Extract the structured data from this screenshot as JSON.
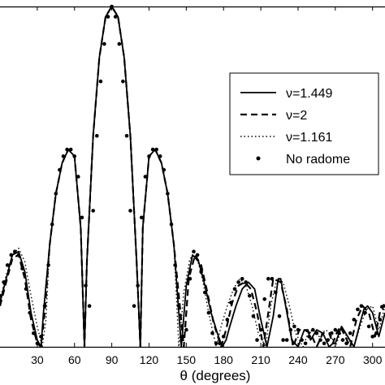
{
  "chart_data": {
    "type": "line",
    "title": "",
    "xlabel": "θ (degrees)",
    "ylabel": "",
    "xlim": [
      0,
      310
    ],
    "ylim": [
      0,
      1
    ],
    "x_ticks": [
      30,
      60,
      90,
      120,
      150,
      180,
      210,
      240,
      270,
      300
    ],
    "x_tick_labels": [
      "30",
      "60",
      "90",
      "120",
      "150",
      "180",
      "210",
      "240",
      "270",
      "300"
    ],
    "grid": false,
    "legend_position": "right",
    "series": [
      {
        "name": "ν=1.449",
        "style": "solid",
        "x": [
          0,
          5,
          10,
          15,
          20,
          25,
          30,
          33,
          35,
          40,
          45,
          50,
          55,
          60,
          65,
          68,
          70,
          75,
          80,
          85,
          90,
          95,
          100,
          105,
          110,
          113,
          115,
          120,
          125,
          130,
          135,
          140,
          146,
          150,
          155,
          160,
          165,
          170,
          175,
          179,
          182,
          185,
          190,
          195,
          200,
          205,
          210,
          215,
          220,
          224,
          226,
          230,
          235,
          240,
          245,
          248,
          250,
          255,
          260,
          265,
          268,
          270,
          272,
          275,
          280,
          285,
          290,
          293,
          296,
          300,
          305,
          310
        ],
        "y": [
          0.13,
          0.2,
          0.27,
          0.28,
          0.22,
          0.1,
          0.02,
          0,
          0.1,
          0.3,
          0.45,
          0.54,
          0.58,
          0.56,
          0.35,
          0,
          0.25,
          0.62,
          0.85,
          0.97,
          1.0,
          0.97,
          0.85,
          0.62,
          0.25,
          0,
          0.35,
          0.56,
          0.58,
          0.54,
          0.45,
          0.3,
          0,
          0.18,
          0.27,
          0.25,
          0.18,
          0.1,
          0.04,
          0,
          0.02,
          0.06,
          0.12,
          0.17,
          0.19,
          0.17,
          0.08,
          0,
          0.09,
          0.2,
          0.2,
          0.12,
          0.02,
          0,
          0.05,
          0.05,
          0.02,
          0.05,
          0.04,
          0,
          0.01,
          0.01,
          0.03,
          0.06,
          0.03,
          0,
          0.07,
          0.11,
          0.12,
          0.1,
          0.03,
          0.1
        ]
      },
      {
        "name": "ν=2",
        "style": "dashed",
        "x": [
          0,
          5,
          10,
          15,
          20,
          25,
          30,
          33,
          36,
          40,
          45,
          50,
          55,
          60,
          65,
          68,
          70,
          75,
          80,
          85,
          90,
          95,
          100,
          105,
          110,
          113,
          115,
          120,
          125,
          130,
          135,
          140,
          148,
          152,
          157,
          162,
          167,
          172,
          178,
          182,
          187,
          192,
          197,
          202,
          207,
          212,
          216,
          220,
          226,
          231,
          236,
          241,
          245,
          250,
          255,
          260,
          265,
          268,
          271,
          274,
          278,
          282,
          287,
          292,
          297,
          302,
          307,
          310
        ],
        "y": [
          0.12,
          0.19,
          0.26,
          0.27,
          0.2,
          0.08,
          0.01,
          0,
          0.1,
          0.3,
          0.45,
          0.54,
          0.58,
          0.56,
          0.35,
          0,
          0.25,
          0.62,
          0.85,
          0.97,
          1.0,
          0.97,
          0.85,
          0.62,
          0.25,
          0,
          0.35,
          0.56,
          0.58,
          0.54,
          0.45,
          0.3,
          0,
          0.2,
          0.27,
          0.24,
          0.16,
          0.07,
          0,
          0.05,
          0.13,
          0.18,
          0.19,
          0.17,
          0.1,
          0,
          0.1,
          0.2,
          0.19,
          0.11,
          0,
          0.05,
          0.05,
          0.04,
          0,
          0.04,
          0.04,
          0.01,
          0.04,
          0.06,
          0.03,
          0,
          0.08,
          0.12,
          0.1,
          0.03,
          0.12,
          0.1
        ]
      },
      {
        "name": "ν=1.161",
        "style": "dotted",
        "x": [
          0,
          5,
          10,
          15,
          20,
          25,
          30,
          34,
          37,
          40,
          45,
          50,
          55,
          60,
          65,
          68,
          70,
          75,
          80,
          85,
          90,
          95,
          100,
          105,
          110,
          113,
          115,
          120,
          125,
          130,
          135,
          140,
          144,
          148,
          153,
          158,
          163,
          168,
          174,
          178,
          183,
          188,
          193,
          198,
          203,
          208,
          214,
          218,
          223,
          228,
          233,
          238,
          244,
          248,
          252,
          257,
          262,
          266,
          270,
          273,
          276,
          281,
          285,
          290,
          295,
          300,
          305,
          310
        ],
        "y": [
          0.14,
          0.21,
          0.27,
          0.29,
          0.25,
          0.15,
          0.06,
          0,
          0.08,
          0.3,
          0.45,
          0.54,
          0.58,
          0.56,
          0.35,
          0,
          0.25,
          0.62,
          0.85,
          0.97,
          1.0,
          0.97,
          0.85,
          0.62,
          0.25,
          0,
          0.35,
          0.56,
          0.58,
          0.54,
          0.45,
          0.3,
          0,
          0.16,
          0.26,
          0.27,
          0.2,
          0.1,
          0,
          0.06,
          0.12,
          0.17,
          0.2,
          0.18,
          0.12,
          0.04,
          0,
          0.12,
          0.2,
          0.19,
          0.12,
          0.04,
          0,
          0.04,
          0.05,
          0.03,
          0.05,
          0.04,
          0,
          0.03,
          0.05,
          0.02,
          0,
          0.06,
          0.11,
          0.12,
          0.05,
          0.12
        ]
      },
      {
        "name": "No radome",
        "style": "markers",
        "x": [
          0,
          3,
          6,
          9,
          12,
          15,
          18,
          21,
          24,
          27,
          30,
          33,
          36,
          39,
          42,
          45,
          48,
          51,
          54,
          57,
          60,
          63,
          66,
          69,
          72,
          75,
          78,
          81,
          84,
          87,
          90,
          93,
          96,
          99,
          102,
          105,
          108,
          111,
          114,
          117,
          120,
          123,
          126,
          129,
          132,
          135,
          138,
          141,
          144,
          147,
          150,
          153,
          156,
          159,
          162,
          165,
          168,
          171,
          174,
          177,
          180,
          183,
          186,
          189,
          192,
          195,
          198,
          201,
          204,
          207,
          210,
          213,
          216,
          219,
          222,
          225,
          228,
          231,
          234,
          237,
          240,
          243,
          246,
          249,
          252,
          255,
          258,
          261,
          264,
          267,
          270,
          273,
          276,
          279,
          282,
          285,
          288,
          291,
          294,
          297,
          300,
          303,
          306,
          309
        ],
        "y": [
          0.15,
          0.19,
          0.24,
          0.27,
          0.28,
          0.27,
          0.23,
          0.17,
          0.1,
          0.04,
          0.01,
          0.03,
          0.12,
          0.24,
          0.36,
          0.45,
          0.52,
          0.56,
          0.58,
          0.58,
          0.56,
          0.5,
          0.38,
          0.18,
          0.12,
          0.4,
          0.62,
          0.78,
          0.89,
          0.97,
          1.0,
          0.97,
          0.89,
          0.78,
          0.62,
          0.4,
          0.12,
          0.18,
          0.38,
          0.5,
          0.56,
          0.58,
          0.58,
          0.56,
          0.52,
          0.45,
          0.36,
          0.24,
          0.12,
          0.03,
          0.05,
          0.2,
          0.28,
          0.27,
          0.22,
          0.16,
          0.1,
          0.04,
          0.01,
          0.01,
          0.03,
          0.08,
          0.13,
          0.17,
          0.19,
          0.2,
          0.19,
          0.15,
          0.09,
          0.02,
          0.05,
          0.14,
          0.2,
          0.2,
          0.16,
          0.09,
          0.02,
          0.02,
          0.05,
          0.06,
          0.05,
          0.02,
          0.01,
          0.03,
          0.05,
          0.04,
          0.02,
          0.01,
          0.02,
          0.04,
          0.05,
          0.04,
          0.02,
          0.01,
          0.04,
          0.08,
          0.11,
          0.12,
          0.1,
          0.06,
          0.03,
          0.04,
          0.08,
          0.12
        ]
      }
    ]
  }
}
